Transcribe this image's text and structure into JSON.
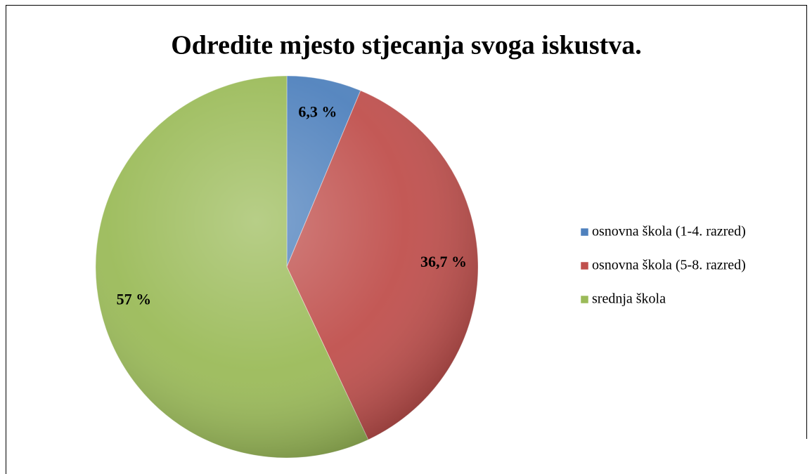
{
  "chart_data": {
    "type": "pie",
    "title": "Odredite mjesto stjecanja svoga iskustva.",
    "categories": [
      "osnovna škola (1-4. razred)",
      "osnovna škola (5-8. razred)",
      "srednja škola"
    ],
    "values": [
      6.3,
      36.7,
      57
    ],
    "value_labels": [
      "6,3 %",
      "36,7 %",
      "57 %"
    ],
    "colors": [
      "#4f81bd",
      "#c0504d",
      "#9bbb59"
    ],
    "legend": "right"
  }
}
